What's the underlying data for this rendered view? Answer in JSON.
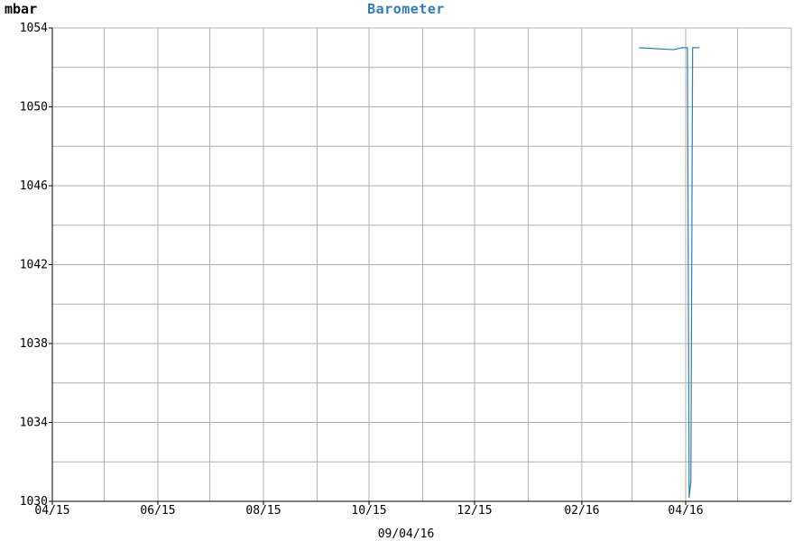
{
  "chart_data": {
    "type": "line",
    "title": "Barometer",
    "unit_label": "mbar",
    "date_label": "09/04/16",
    "colors": {
      "series": "#2f7bbf",
      "title": "#2f7bbf",
      "grid": "#b0b0b0",
      "background": "#ffffff"
    },
    "grid": true,
    "ylim": [
      1030,
      1054
    ],
    "y_ticks": [
      "1030",
      "1034",
      "1038",
      "1042",
      "1046",
      "1050",
      "1054"
    ],
    "x_range": [
      "2015-04-01",
      "2016-06-01"
    ],
    "x_ticks": [
      {
        "date": "2015-04-01",
        "label": "04/15"
      },
      {
        "date": "2015-06-01",
        "label": "06/15"
      },
      {
        "date": "2015-08-01",
        "label": "08/15"
      },
      {
        "date": "2015-10-01",
        "label": "10/15"
      },
      {
        "date": "2015-12-01",
        "label": "12/15"
      },
      {
        "date": "2016-02-01",
        "label": "02/16"
      },
      {
        "date": "2016-04-01",
        "label": "04/16"
      }
    ],
    "x_minor_gridlines": [
      "2015-05-01",
      "2015-07-01",
      "2015-09-01",
      "2015-11-01",
      "2016-01-01",
      "2016-03-01",
      "2016-05-01"
    ],
    "series": [
      {
        "points": [
          [
            "2016-03-05",
            1053.0
          ],
          [
            "2016-03-15",
            1052.95
          ],
          [
            "2016-03-25",
            1052.9
          ],
          [
            "2016-03-30",
            1053.0
          ],
          [
            "2016-04-01",
            1053.0
          ],
          [
            "2016-04-02",
            1053.0
          ],
          [
            "2016-04-03",
            1030.2
          ],
          [
            "2016-04-04",
            1031.0
          ],
          [
            "2016-04-05",
            1053.0
          ],
          [
            "2016-04-09",
            1053.0
          ]
        ]
      }
    ]
  }
}
